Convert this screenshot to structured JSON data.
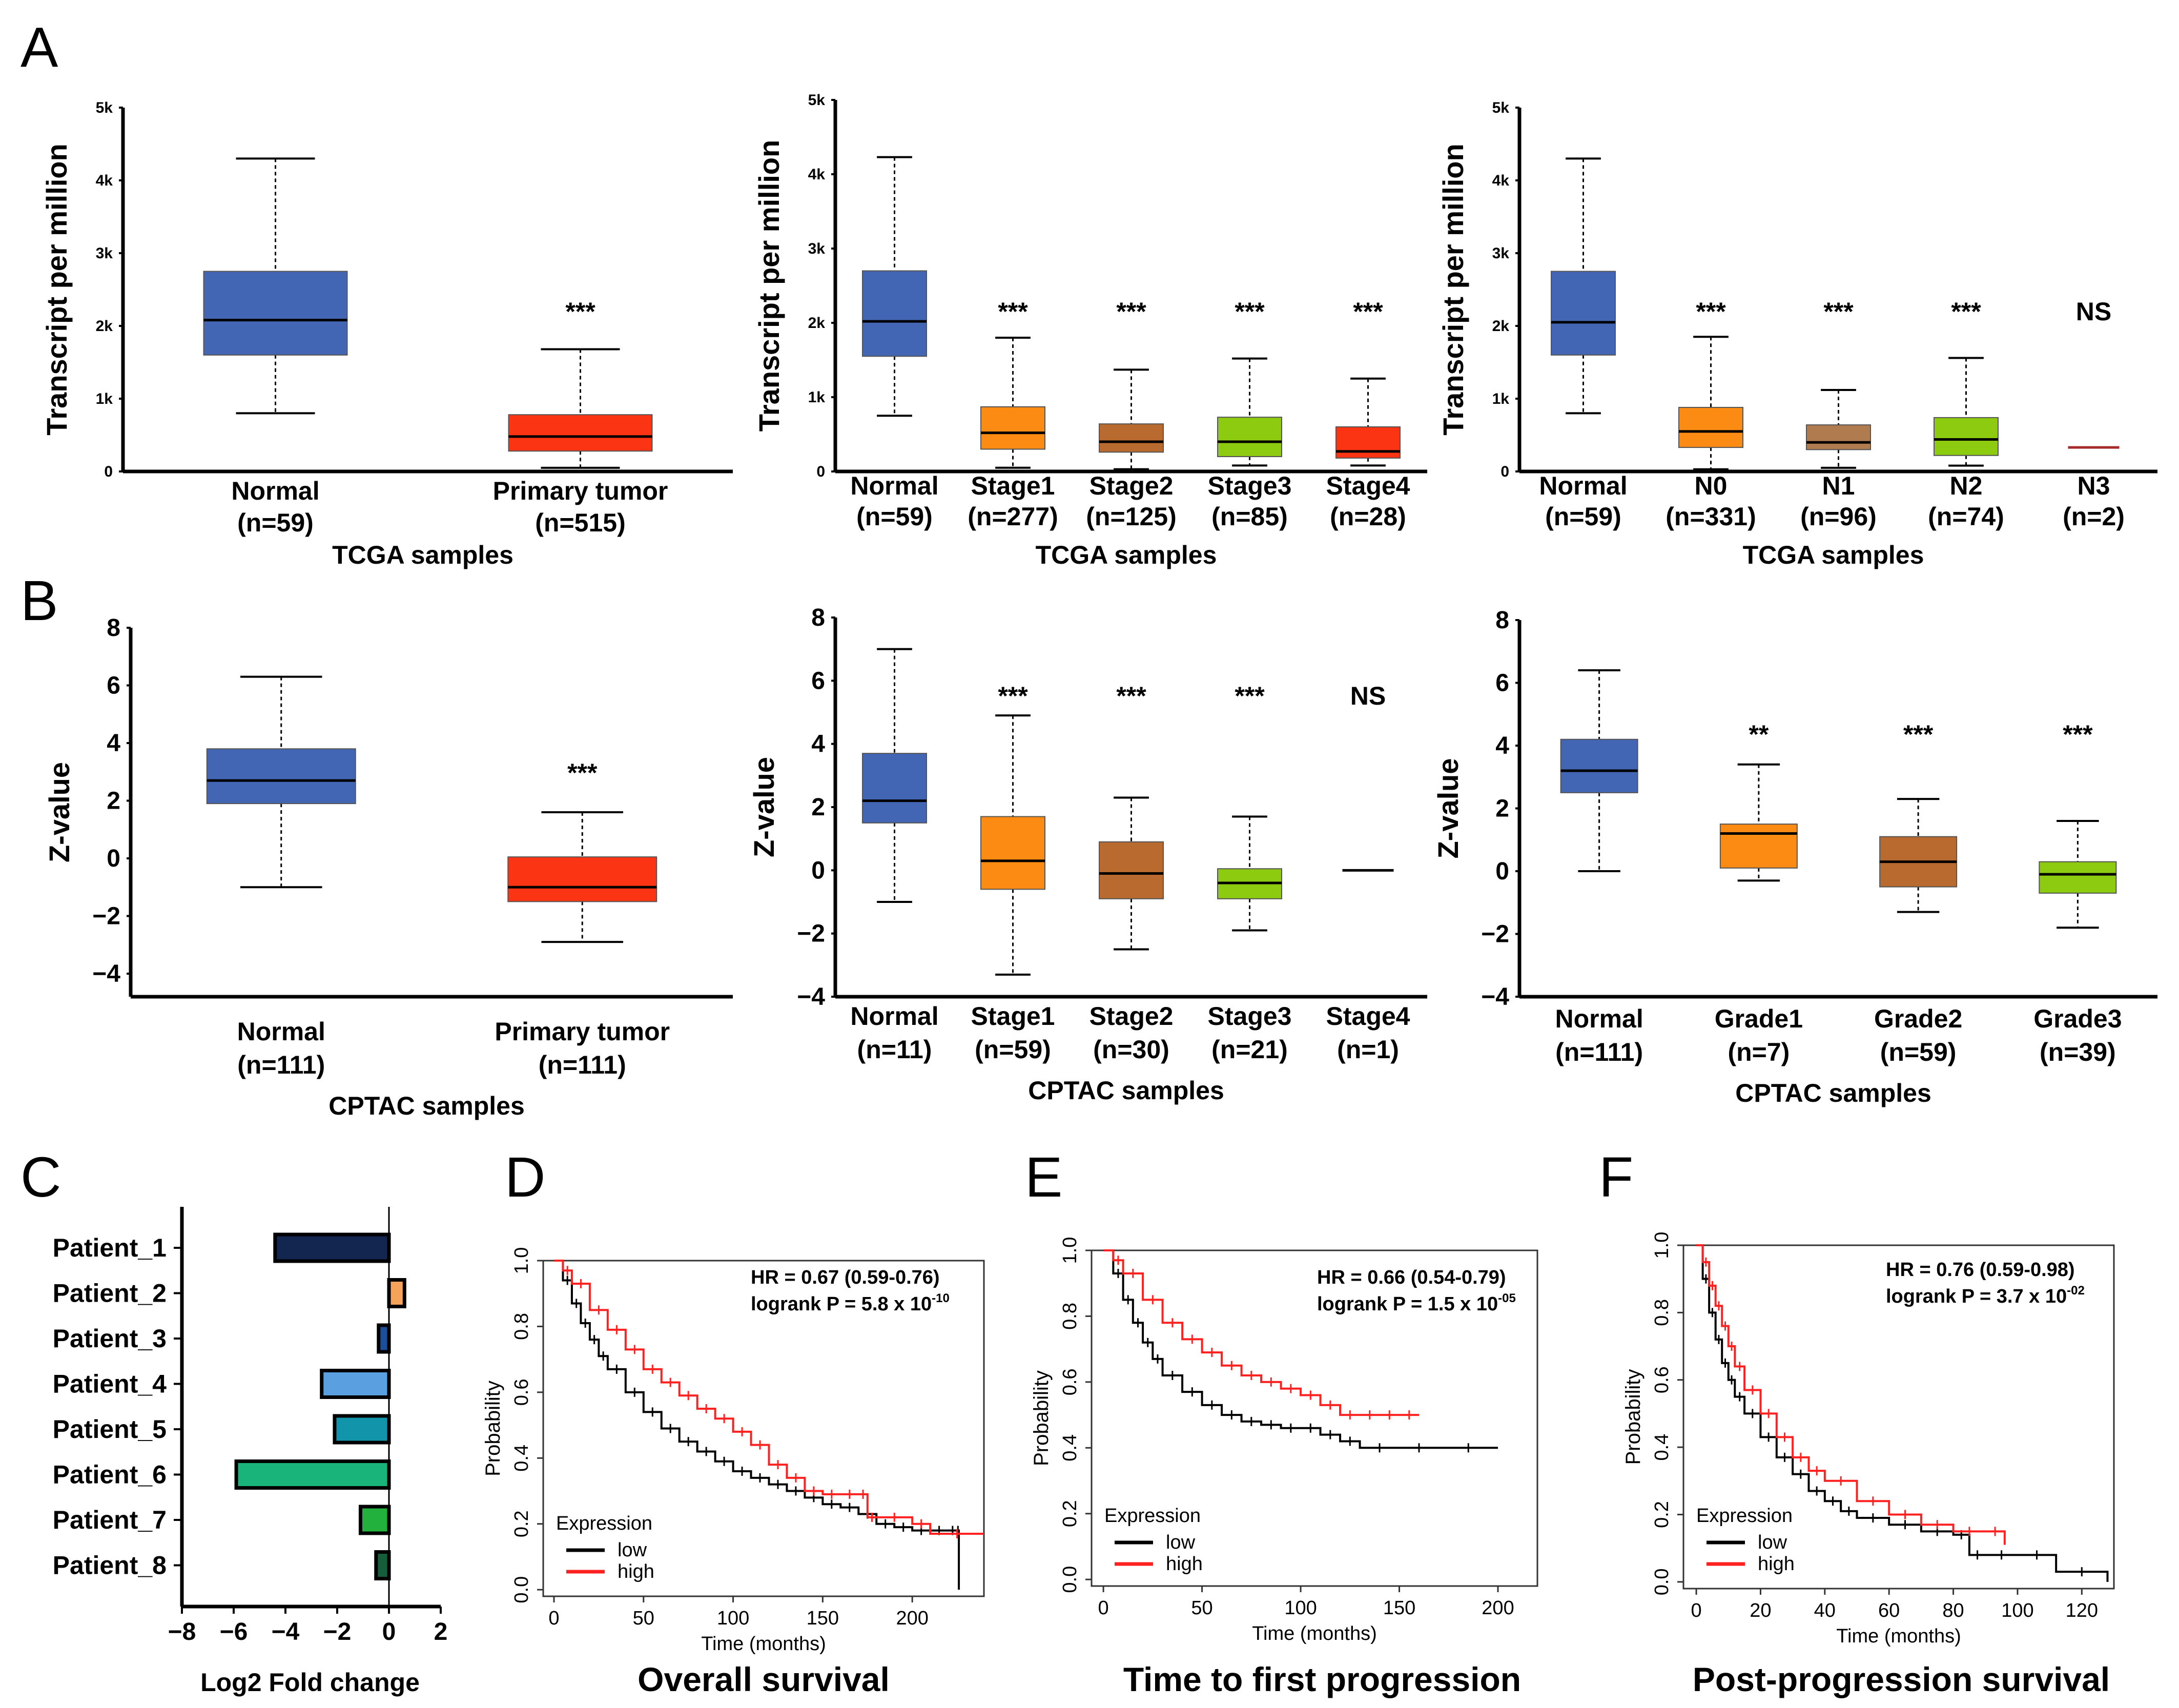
{
  "colors": {
    "normal": "#4266b3",
    "tumor": "#fb3413",
    "stage1": "#fb8b13",
    "stage2": "#b96a2e",
    "stage3": "#8ccb0f",
    "stage4": "#fb3413",
    "n0": "#fb8b13",
    "n1": "#b17b50",
    "n2": "#8ccb0f",
    "n3": "#a52a2a",
    "low": "#000000",
    "high": "#ff2020"
  },
  "panel_labels": [
    "A",
    "B",
    "C",
    "D",
    "E",
    "F"
  ],
  "chart_data": [
    {
      "id": "A1",
      "type": "box",
      "ylabel": "Transcript per million",
      "xlabel": "TCGA samples",
      "yticks": [
        0,
        1000,
        2000,
        3000,
        4000,
        5000
      ],
      "yticklabels": [
        "0",
        "1k",
        "2k",
        "3k",
        "4k",
        "5k"
      ],
      "ylim": [
        0,
        5000
      ],
      "boxes": [
        {
          "label": "Normal",
          "n": "(n=59)",
          "min": 800,
          "q1": 1600,
          "median": 2080,
          "q3": 2750,
          "max": 4300,
          "color": "#4266b3",
          "sig": ""
        },
        {
          "label": "Primary tumor",
          "n": "(n=515)",
          "min": 50,
          "q1": 280,
          "median": 480,
          "q3": 780,
          "max": 1680,
          "color": "#fb3413",
          "sig": "***"
        }
      ]
    },
    {
      "id": "A2",
      "type": "box",
      "ylabel": "Transcript per million",
      "xlabel": "TCGA samples",
      "yticks": [
        0,
        1000,
        2000,
        3000,
        4000,
        5000
      ],
      "yticklabels": [
        "0",
        "1k",
        "2k",
        "3k",
        "4k",
        "5k"
      ],
      "ylim": [
        0,
        5000
      ],
      "boxes": [
        {
          "label": "Normal",
          "n": "(n=59)",
          "min": 750,
          "q1": 1550,
          "median": 2020,
          "q3": 2700,
          "max": 4230,
          "color": "#4266b3",
          "sig": ""
        },
        {
          "label": "Stage1",
          "n": "(n=277)",
          "min": 50,
          "q1": 300,
          "median": 520,
          "q3": 870,
          "max": 1800,
          "color": "#fb8b13",
          "sig": "***"
        },
        {
          "label": "Stage2",
          "n": "(n=125)",
          "min": 30,
          "q1": 260,
          "median": 400,
          "q3": 640,
          "max": 1370,
          "color": "#b96a2e",
          "sig": "***"
        },
        {
          "label": "Stage3",
          "n": "(n=85)",
          "min": 80,
          "q1": 200,
          "median": 400,
          "q3": 730,
          "max": 1520,
          "color": "#8ccb0f",
          "sig": "***"
        },
        {
          "label": "Stage4",
          "n": "(n=28)",
          "min": 80,
          "q1": 180,
          "median": 270,
          "q3": 600,
          "max": 1250,
          "color": "#fb3413",
          "sig": "***"
        }
      ]
    },
    {
      "id": "A3",
      "type": "box",
      "ylabel": "Transcript per million",
      "xlabel": "TCGA samples",
      "yticks": [
        0,
        1000,
        2000,
        3000,
        4000,
        5000
      ],
      "yticklabels": [
        "0",
        "1k",
        "2k",
        "3k",
        "4k",
        "5k"
      ],
      "ylim": [
        0,
        5000
      ],
      "boxes": [
        {
          "label": "Normal",
          "n": "(n=59)",
          "min": 800,
          "q1": 1600,
          "median": 2050,
          "q3": 2750,
          "max": 4300,
          "color": "#4266b3",
          "sig": ""
        },
        {
          "label": "N0",
          "n": "(n=331)",
          "min": 30,
          "q1": 330,
          "median": 550,
          "q3": 880,
          "max": 1850,
          "color": "#fb8b13",
          "sig": "***"
        },
        {
          "label": "N1",
          "n": "(n=96)",
          "min": 50,
          "q1": 300,
          "median": 400,
          "q3": 640,
          "max": 1120,
          "color": "#b17b50",
          "sig": "***"
        },
        {
          "label": "N2",
          "n": "(n=74)",
          "min": 80,
          "q1": 220,
          "median": 440,
          "q3": 740,
          "max": 1560,
          "color": "#8ccb0f",
          "sig": "***"
        },
        {
          "label": "N3",
          "n": "(n=2)",
          "min": 330,
          "q1": 330,
          "median": 330,
          "q3": 330,
          "max": 330,
          "color": "#a52a2a",
          "sig": "NS"
        }
      ]
    },
    {
      "id": "B1",
      "type": "box",
      "ylabel": "Z-value",
      "xlabel": "CPTAC samples",
      "yticks": [
        -4,
        -2,
        0,
        2,
        4,
        6,
        8
      ],
      "yticklabels": [
        "−4",
        "−2",
        "0",
        "2",
        "4",
        "6",
        "8"
      ],
      "ylim": [
        -4.8,
        8
      ],
      "boxes": [
        {
          "label": "Normal",
          "n": "(n=111)",
          "min": -1.0,
          "q1": 1.9,
          "median": 2.7,
          "q3": 3.8,
          "max": 6.3,
          "color": "#4266b3",
          "sig": ""
        },
        {
          "label": "Primary tumor",
          "n": "(n=111)",
          "min": -2.9,
          "q1": -1.5,
          "median": -1.0,
          "q3": 0.05,
          "max": 1.6,
          "color": "#fb3413",
          "sig": "***"
        }
      ]
    },
    {
      "id": "B2",
      "type": "box",
      "ylabel": "Z-value",
      "xlabel": "CPTAC samples",
      "yticks": [
        -4,
        -2,
        0,
        2,
        4,
        6,
        8
      ],
      "yticklabels": [
        "−4",
        "−2",
        "0",
        "2",
        "4",
        "6",
        "8"
      ],
      "ylim": [
        -4,
        8
      ],
      "boxes": [
        {
          "label": "Normal",
          "n": "(n=11)",
          "min": -1.0,
          "q1": 1.5,
          "median": 2.2,
          "q3": 3.7,
          "max": 7.0,
          "color": "#4266b3",
          "sig": ""
        },
        {
          "label": "Stage1",
          "n": "(n=59)",
          "min": -3.3,
          "q1": -0.6,
          "median": 0.3,
          "q3": 1.7,
          "max": 4.9,
          "color": "#fb8b13",
          "sig": "***"
        },
        {
          "label": "Stage2",
          "n": "(n=30)",
          "min": -2.5,
          "q1": -0.9,
          "median": -0.1,
          "q3": 0.9,
          "max": 2.3,
          "color": "#b96a2e",
          "sig": "***"
        },
        {
          "label": "Stage3",
          "n": "(n=21)",
          "min": -1.9,
          "q1": -0.9,
          "median": -0.4,
          "q3": 0.05,
          "max": 1.7,
          "color": "#8ccb0f",
          "sig": "***"
        },
        {
          "label": "Stage4",
          "n": "(n=1)",
          "min": 0,
          "q1": 0,
          "median": 0,
          "q3": 0,
          "max": 0,
          "color": "#000000",
          "sig": "NS"
        }
      ]
    },
    {
      "id": "B3",
      "type": "box",
      "ylabel": "Z-value",
      "xlabel": "CPTAC samples",
      "yticks": [
        -4,
        -2,
        0,
        2,
        4,
        6,
        8
      ],
      "yticklabels": [
        "−4",
        "−2",
        "0",
        "2",
        "4",
        "6",
        "8"
      ],
      "ylim": [
        -4,
        8
      ],
      "boxes": [
        {
          "label": "Normal",
          "n": "(n=111)",
          "min": 0.0,
          "q1": 2.5,
          "median": 3.2,
          "q3": 4.2,
          "max": 6.4,
          "color": "#4266b3",
          "sig": ""
        },
        {
          "label": "Grade1",
          "n": "(n=7)",
          "min": -0.3,
          "q1": 0.1,
          "median": 1.2,
          "q3": 1.5,
          "max": 3.4,
          "color": "#fb8b13",
          "sig": "**"
        },
        {
          "label": "Grade2",
          "n": "(n=59)",
          "min": -1.3,
          "q1": -0.5,
          "median": 0.3,
          "q3": 1.1,
          "max": 2.3,
          "color": "#b96a2e",
          "sig": "***"
        },
        {
          "label": "Grade3",
          "n": "(n=39)",
          "min": -1.8,
          "q1": -0.7,
          "median": -0.1,
          "q3": 0.3,
          "max": 1.6,
          "color": "#8ccb0f",
          "sig": "***"
        }
      ]
    },
    {
      "id": "C",
      "type": "bar",
      "orientation": "horizontal",
      "xlabel": "Log2 Fold change",
      "xticks": [
        -8,
        -6,
        -4,
        -2,
        0,
        2
      ],
      "xlim": [
        -8,
        2
      ],
      "categories": [
        "Patient_1",
        "Patient_2",
        "Patient_3",
        "Patient_4",
        "Patient_5",
        "Patient_6",
        "Patient_7",
        "Patient_8"
      ],
      "values": [
        -4.4,
        0.6,
        -0.4,
        -2.6,
        -2.1,
        -5.9,
        -1.1,
        -0.5
      ],
      "colors": [
        "#13264f",
        "#f5a35a",
        "#1b4f9c",
        "#5aa0e0",
        "#1294aa",
        "#19b47a",
        "#21b13c",
        "#155e3c"
      ]
    },
    {
      "id": "D",
      "type": "line",
      "title": "Overall survival",
      "xlabel": "Time (months)",
      "ylabel": "Probability",
      "xticks": [
        0,
        50,
        100,
        150,
        200
      ],
      "yticks": [
        0.0,
        0.2,
        0.4,
        0.6,
        0.8,
        1.0
      ],
      "yticklabels": [
        "0.0",
        "0.2",
        "0.4",
        "0.6",
        "0.8",
        "1.0"
      ],
      "xlim": [
        -6,
        240
      ],
      "ylim": [
        -0.02,
        1.0
      ],
      "annotation": {
        "hr": "HR = 0.67 (0.59-0.76)",
        "logrank": "logrank P = 5.8 x 10",
        "exp": "-10"
      },
      "legend_title": "Expression",
      "series": [
        {
          "name": "low",
          "color": "#000000",
          "x": [
            0,
            5,
            10,
            15,
            20,
            25,
            30,
            40,
            50,
            60,
            70,
            80,
            90,
            100,
            110,
            120,
            130,
            140,
            150,
            160,
            170,
            180,
            190,
            200,
            210,
            220,
            225,
            226
          ],
          "y": [
            1.0,
            0.94,
            0.87,
            0.81,
            0.76,
            0.71,
            0.67,
            0.6,
            0.54,
            0.49,
            0.45,
            0.42,
            0.39,
            0.36,
            0.34,
            0.32,
            0.3,
            0.28,
            0.26,
            0.25,
            0.23,
            0.2,
            0.19,
            0.18,
            0.18,
            0.18,
            0.18,
            0.0
          ]
        },
        {
          "name": "high",
          "color": "#ff2020",
          "x": [
            0,
            5,
            10,
            20,
            30,
            40,
            50,
            60,
            70,
            80,
            90,
            100,
            110,
            120,
            130,
            140,
            150,
            160,
            170,
            175,
            180,
            200,
            210,
            240
          ],
          "y": [
            1.0,
            0.97,
            0.93,
            0.85,
            0.79,
            0.73,
            0.67,
            0.63,
            0.59,
            0.55,
            0.52,
            0.48,
            0.44,
            0.38,
            0.34,
            0.3,
            0.29,
            0.29,
            0.29,
            0.22,
            0.22,
            0.2,
            0.17,
            0.17
          ]
        }
      ]
    },
    {
      "id": "E",
      "type": "line",
      "title": "Time to first progression",
      "xlabel": "Time (months)",
      "ylabel": "Probability",
      "xticks": [
        0,
        50,
        100,
        150,
        200
      ],
      "yticks": [
        0.0,
        0.2,
        0.4,
        0.6,
        0.8,
        1.0
      ],
      "yticklabels": [
        "0.0",
        "0.2",
        "0.4",
        "0.6",
        "0.8",
        "1.0"
      ],
      "xlim": [
        -6,
        220
      ],
      "ylim": [
        -0.02,
        1.0
      ],
      "annotation": {
        "hr": "HR = 0.66 (0.54-0.79)",
        "logrank": "logrank P = 1.5 x 10",
        "exp": "-05"
      },
      "legend_title": "Expression",
      "series": [
        {
          "name": "low",
          "color": "#000000",
          "x": [
            0,
            5,
            10,
            15,
            20,
            25,
            30,
            40,
            50,
            60,
            70,
            80,
            90,
            100,
            110,
            120,
            130,
            150,
            170,
            200
          ],
          "y": [
            1.0,
            0.93,
            0.85,
            0.78,
            0.72,
            0.67,
            0.62,
            0.57,
            0.53,
            0.5,
            0.48,
            0.47,
            0.46,
            0.46,
            0.44,
            0.42,
            0.4,
            0.4,
            0.4,
            0.4
          ]
        },
        {
          "name": "high",
          "color": "#ff2020",
          "x": [
            0,
            5,
            10,
            20,
            30,
            40,
            50,
            60,
            70,
            80,
            90,
            100,
            110,
            120,
            130,
            140,
            150,
            160
          ],
          "y": [
            1.0,
            0.97,
            0.93,
            0.85,
            0.78,
            0.73,
            0.69,
            0.65,
            0.62,
            0.6,
            0.58,
            0.56,
            0.53,
            0.5,
            0.5,
            0.5,
            0.5,
            0.5
          ]
        }
      ]
    },
    {
      "id": "F",
      "type": "line",
      "title": "Post-progression survival",
      "xlabel": "Time (months)",
      "ylabel": "Probability",
      "xticks": [
        0,
        20,
        40,
        60,
        80,
        100,
        120
      ],
      "yticks": [
        0.0,
        0.2,
        0.4,
        0.6,
        0.8,
        1.0
      ],
      "yticklabels": [
        "0.0",
        "0.2",
        "0.4",
        "0.6",
        "0.8",
        "1.0"
      ],
      "xlim": [
        -4,
        130
      ],
      "ylim": [
        -0.02,
        1.0
      ],
      "annotation": {
        "hr": "HR = 0.76 (0.59-0.98)",
        "logrank": "logrank P = 3.7 x 10",
        "exp": "-02"
      },
      "legend_title": "Expression",
      "series": [
        {
          "name": "low",
          "color": "#000000",
          "x": [
            0,
            2,
            4,
            6,
            8,
            10,
            12,
            15,
            20,
            25,
            30,
            35,
            40,
            45,
            50,
            60,
            70,
            80,
            85,
            90,
            100,
            112,
            128
          ],
          "y": [
            1.0,
            0.9,
            0.8,
            0.72,
            0.65,
            0.6,
            0.55,
            0.5,
            0.43,
            0.37,
            0.32,
            0.27,
            0.24,
            0.21,
            0.19,
            0.17,
            0.15,
            0.14,
            0.08,
            0.08,
            0.08,
            0.03,
            0.0
          ]
        },
        {
          "name": "high",
          "color": "#ff2020",
          "x": [
            0,
            2,
            4,
            6,
            8,
            10,
            12,
            15,
            20,
            25,
            30,
            35,
            40,
            50,
            60,
            70,
            80,
            90,
            96
          ],
          "y": [
            1.0,
            0.95,
            0.88,
            0.82,
            0.76,
            0.7,
            0.64,
            0.57,
            0.5,
            0.43,
            0.37,
            0.33,
            0.3,
            0.24,
            0.2,
            0.17,
            0.15,
            0.15,
            0.11
          ]
        }
      ]
    }
  ]
}
